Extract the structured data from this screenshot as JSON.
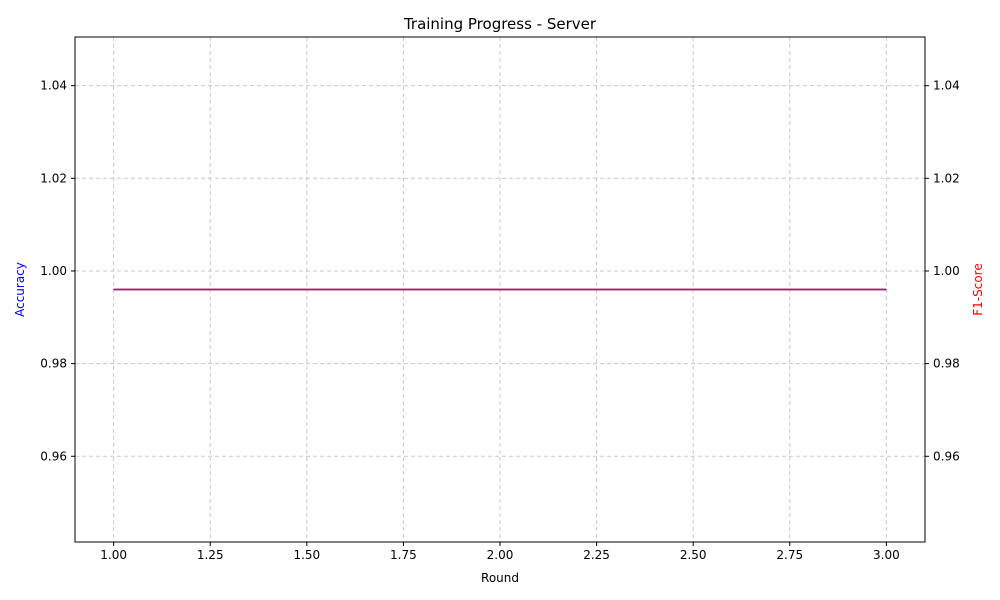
{
  "chart_data": {
    "type": "line",
    "title": "Training Progress - Server",
    "xlabel": "Round",
    "ylabel_left": "Accuracy",
    "ylabel_right": "F1-Score",
    "x": [
      1,
      2,
      3
    ],
    "series": [
      {
        "axis": "left",
        "color": "#0000ff",
        "values": [
          0.996,
          0.996,
          0.996
        ]
      },
      {
        "axis": "right",
        "color": "#ff0000",
        "values": [
          0.996,
          0.996,
          0.996
        ]
      }
    ],
    "xlim": [
      0.9,
      3.1
    ],
    "ylim_left": [
      0.9415,
      1.0505
    ],
    "ylim_right": [
      0.9415,
      1.0505
    ],
    "xticks": [
      {
        "value": 1.0,
        "label": "1.00"
      },
      {
        "value": 1.25,
        "label": "1.25"
      },
      {
        "value": 1.5,
        "label": "1.50"
      },
      {
        "value": 1.75,
        "label": "1.75"
      },
      {
        "value": 2.0,
        "label": "2.00"
      },
      {
        "value": 2.25,
        "label": "2.25"
      },
      {
        "value": 2.5,
        "label": "2.50"
      },
      {
        "value": 2.75,
        "label": "2.75"
      },
      {
        "value": 3.0,
        "label": "3.00"
      }
    ],
    "yticks_left": [
      {
        "value": 0.96,
        "label": "0.96"
      },
      {
        "value": 0.98,
        "label": "0.98"
      },
      {
        "value": 1.0,
        "label": "1.00"
      },
      {
        "value": 1.02,
        "label": "1.02"
      },
      {
        "value": 1.04,
        "label": "1.04"
      }
    ],
    "yticks_right": [
      {
        "value": 0.96,
        "label": "0.96"
      },
      {
        "value": 0.98,
        "label": "0.98"
      },
      {
        "value": 1.0,
        "label": "1.00"
      },
      {
        "value": 1.02,
        "label": "1.02"
      },
      {
        "value": 1.04,
        "label": "1.04"
      }
    ],
    "grid": true,
    "colors": {
      "left_label": "#0000ff",
      "right_label": "#ff0000",
      "grid": "#c8c8c8"
    }
  }
}
